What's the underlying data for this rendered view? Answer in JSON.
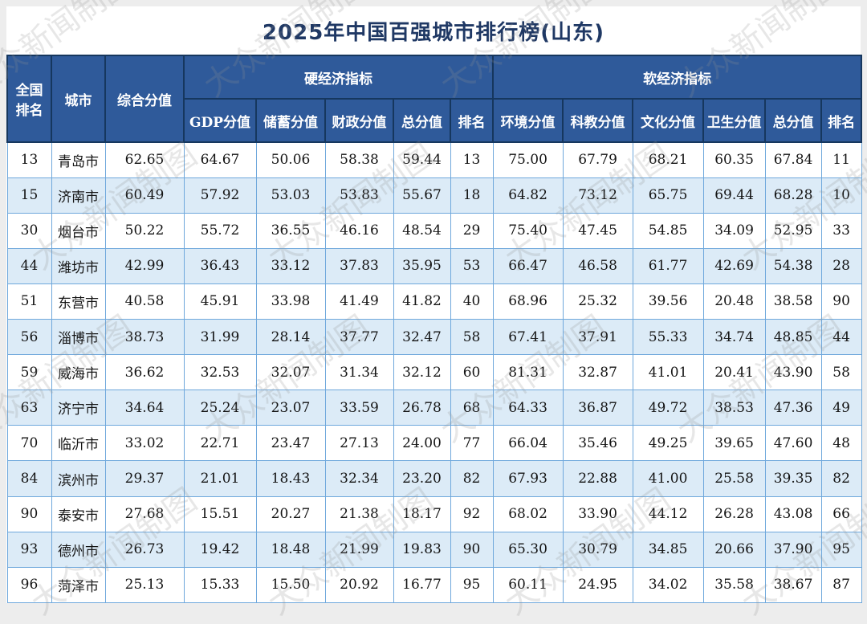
{
  "title": "2025年中国百强城市排行榜(山东)",
  "watermark_text": "大众新闻制图",
  "colors": {
    "header_bg": "#2f5a9a",
    "header_border": "#16375e",
    "title_text": "#1f3864",
    "row_alt_bg": "#dcebf7",
    "data_border": "#6fa8dc",
    "page_edge": "#ededed"
  },
  "table": {
    "header": {
      "rank_national": "全国排名",
      "city": "城市",
      "composite": "综合分值",
      "hard_group": "硬经济指标",
      "soft_group": "软经济指标",
      "hard_cols": [
        "GDP分值",
        "储蓄分值",
        "财政分值",
        "总分值",
        "排名"
      ],
      "soft_cols": [
        "环境分值",
        "科教分值",
        "文化分值",
        "卫生分值",
        "总分值",
        "排名"
      ]
    },
    "rows": [
      [
        "13",
        "青岛市",
        "62.65",
        "64.67",
        "50.06",
        "58.38",
        "59.44",
        "13",
        "75.00",
        "67.79",
        "68.21",
        "60.35",
        "67.84",
        "11"
      ],
      [
        "15",
        "济南市",
        "60.49",
        "57.92",
        "53.03",
        "53.83",
        "55.67",
        "18",
        "64.82",
        "73.12",
        "65.75",
        "69.44",
        "68.28",
        "10"
      ],
      [
        "30",
        "烟台市",
        "50.22",
        "55.72",
        "36.55",
        "46.16",
        "48.54",
        "29",
        "75.40",
        "47.45",
        "54.85",
        "34.09",
        "52.95",
        "33"
      ],
      [
        "44",
        "潍坊市",
        "42.99",
        "36.43",
        "33.12",
        "37.83",
        "35.95",
        "53",
        "66.47",
        "46.58",
        "61.77",
        "42.69",
        "54.38",
        "28"
      ],
      [
        "51",
        "东营市",
        "40.58",
        "45.91",
        "33.98",
        "41.49",
        "41.82",
        "40",
        "68.96",
        "25.32",
        "39.56",
        "20.48",
        "38.58",
        "90"
      ],
      [
        "56",
        "淄博市",
        "38.73",
        "31.99",
        "28.14",
        "37.77",
        "32.47",
        "58",
        "67.41",
        "37.91",
        "55.33",
        "34.74",
        "48.85",
        "44"
      ],
      [
        "59",
        "威海市",
        "36.62",
        "32.53",
        "32.07",
        "31.34",
        "32.12",
        "60",
        "81.31",
        "32.87",
        "41.01",
        "20.41",
        "43.90",
        "58"
      ],
      [
        "63",
        "济宁市",
        "34.64",
        "25.24",
        "23.07",
        "33.59",
        "26.78",
        "68",
        "64.33",
        "36.87",
        "49.72",
        "38.53",
        "47.36",
        "49"
      ],
      [
        "70",
        "临沂市",
        "33.02",
        "22.71",
        "23.47",
        "27.13",
        "24.00",
        "77",
        "66.04",
        "35.46",
        "49.25",
        "39.65",
        "47.60",
        "48"
      ],
      [
        "84",
        "滨州市",
        "29.37",
        "21.01",
        "18.43",
        "32.34",
        "23.20",
        "82",
        "67.93",
        "22.88",
        "41.00",
        "25.58",
        "39.35",
        "82"
      ],
      [
        "90",
        "泰安市",
        "27.68",
        "15.51",
        "20.27",
        "21.38",
        "18.17",
        "92",
        "68.02",
        "33.90",
        "44.12",
        "26.28",
        "43.08",
        "66"
      ],
      [
        "93",
        "德州市",
        "26.73",
        "19.42",
        "18.48",
        "21.99",
        "19.83",
        "90",
        "65.30",
        "30.79",
        "34.85",
        "20.66",
        "37.90",
        "95"
      ],
      [
        "96",
        "菏泽市",
        "25.13",
        "15.33",
        "15.50",
        "20.92",
        "16.77",
        "95",
        "60.11",
        "24.95",
        "34.02",
        "35.58",
        "38.67",
        "87"
      ]
    ]
  },
  "chart_data": {
    "type": "table",
    "title": "2025年中国百强城市排行榜(山东)",
    "column_groups": [
      "硬经济指标",
      "软经济指标"
    ],
    "columns": [
      "全国排名",
      "城市",
      "综合分值",
      "GDP分值",
      "储蓄分值",
      "财政分值",
      "硬经济总分值",
      "硬经济排名",
      "环境分值",
      "科教分值",
      "文化分值",
      "卫生分值",
      "软经济总分值",
      "软经济排名"
    ],
    "rows": [
      [
        13,
        "青岛市",
        62.65,
        64.67,
        50.06,
        58.38,
        59.44,
        13,
        75.0,
        67.79,
        68.21,
        60.35,
        67.84,
        11
      ],
      [
        15,
        "济南市",
        60.49,
        57.92,
        53.03,
        53.83,
        55.67,
        18,
        64.82,
        73.12,
        65.75,
        69.44,
        68.28,
        10
      ],
      [
        30,
        "烟台市",
        50.22,
        55.72,
        36.55,
        46.16,
        48.54,
        29,
        75.4,
        47.45,
        54.85,
        34.09,
        52.95,
        33
      ],
      [
        44,
        "潍坊市",
        42.99,
        36.43,
        33.12,
        37.83,
        35.95,
        53,
        66.47,
        46.58,
        61.77,
        42.69,
        54.38,
        28
      ],
      [
        51,
        "东营市",
        40.58,
        45.91,
        33.98,
        41.49,
        41.82,
        40,
        68.96,
        25.32,
        39.56,
        20.48,
        38.58,
        90
      ],
      [
        56,
        "淄博市",
        38.73,
        31.99,
        28.14,
        37.77,
        32.47,
        58,
        67.41,
        37.91,
        55.33,
        34.74,
        48.85,
        44
      ],
      [
        59,
        "威海市",
        36.62,
        32.53,
        32.07,
        31.34,
        32.12,
        60,
        81.31,
        32.87,
        41.01,
        20.41,
        43.9,
        58
      ],
      [
        63,
        "济宁市",
        34.64,
        25.24,
        23.07,
        33.59,
        26.78,
        68,
        64.33,
        36.87,
        49.72,
        38.53,
        47.36,
        49
      ],
      [
        70,
        "临沂市",
        33.02,
        22.71,
        23.47,
        27.13,
        24.0,
        77,
        66.04,
        35.46,
        49.25,
        39.65,
        47.6,
        48
      ],
      [
        84,
        "滨州市",
        29.37,
        21.01,
        18.43,
        32.34,
        23.2,
        82,
        67.93,
        22.88,
        41.0,
        25.58,
        39.35,
        82
      ],
      [
        90,
        "泰安市",
        27.68,
        15.51,
        20.27,
        21.38,
        18.17,
        92,
        68.02,
        33.9,
        44.12,
        26.28,
        43.08,
        66
      ],
      [
        93,
        "德州市",
        26.73,
        19.42,
        18.48,
        21.99,
        19.83,
        90,
        65.3,
        30.79,
        34.85,
        20.66,
        37.9,
        95
      ],
      [
        96,
        "菏泽市",
        25.13,
        15.33,
        15.5,
        20.92,
        16.77,
        95,
        60.11,
        24.95,
        34.02,
        35.58,
        38.67,
        87
      ]
    ]
  }
}
